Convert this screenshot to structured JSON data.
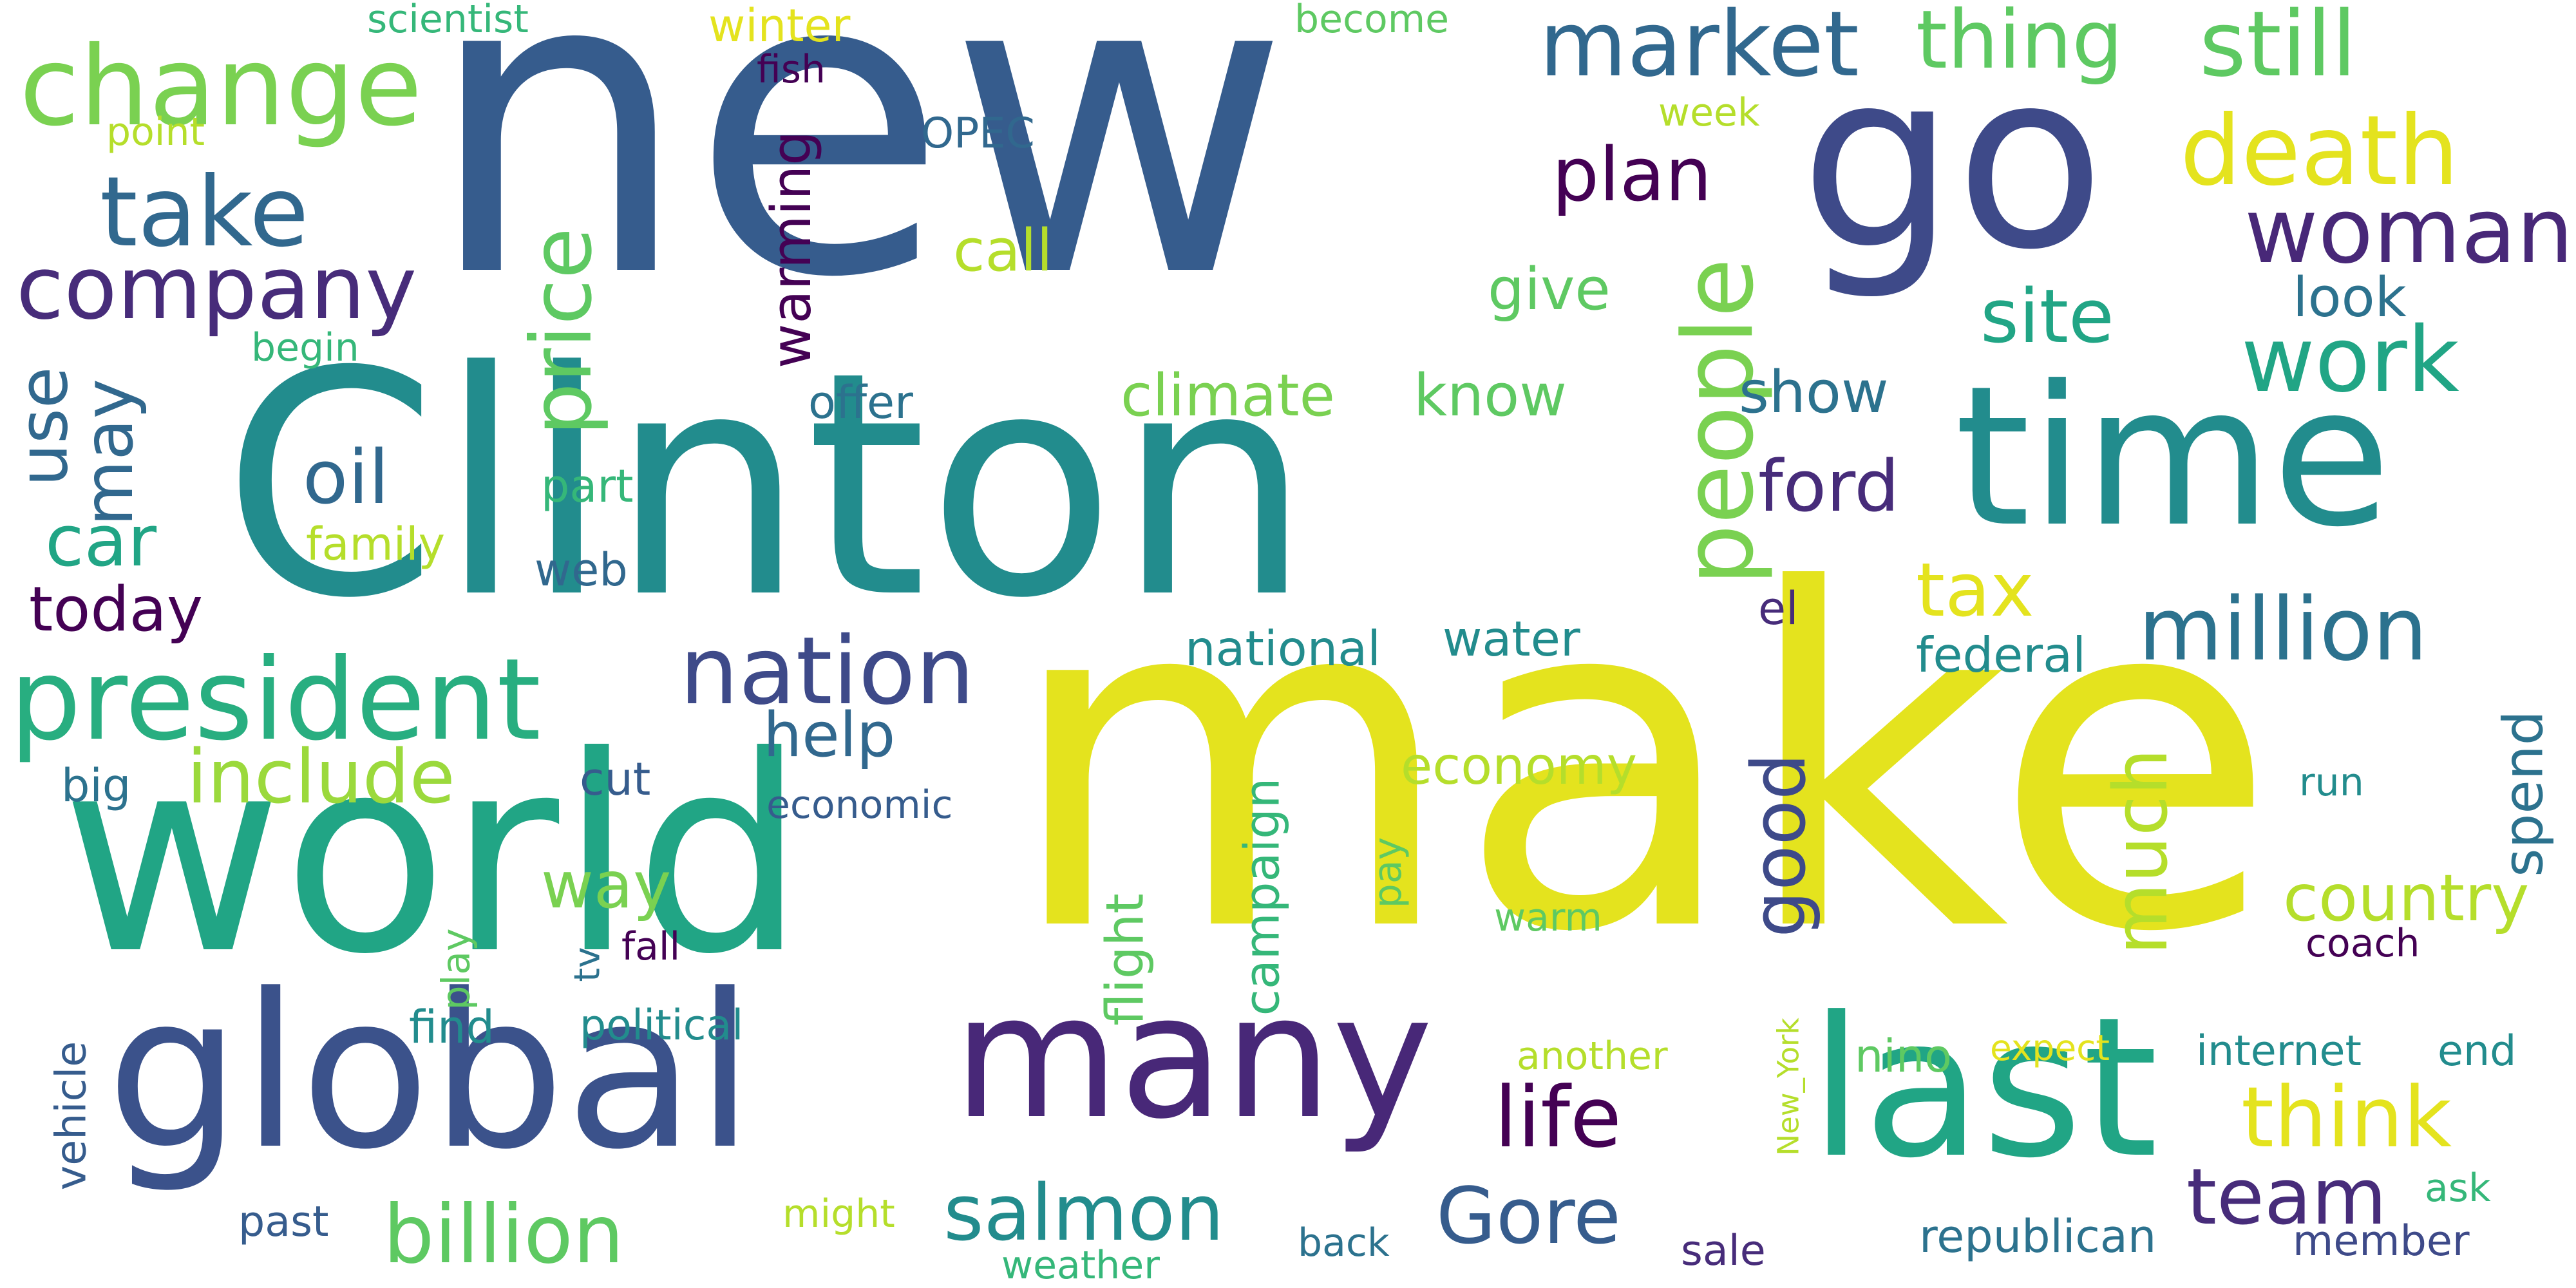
{
  "palette": {
    "yellow": "#e4e31e",
    "lime": "#9bd93c",
    "green": "#5ec962",
    "mint": "#35b779",
    "teal_green": "#21a585",
    "teal": "#228c8d",
    "blue_teal": "#2c728e",
    "blue": "#365c8d",
    "indigo": "#414487",
    "purple": "#482878",
    "dark_purple": "#440154"
  },
  "words": [
    {
      "text": "new",
      "color": "#365c8d"
    },
    {
      "text": "make",
      "color": "#e4e31e"
    },
    {
      "text": "Clinton",
      "color": "#228c8d"
    },
    {
      "text": "world",
      "color": "#21a585"
    },
    {
      "text": "go",
      "color": "#3e4a89"
    },
    {
      "text": "global",
      "color": "#3b528b"
    },
    {
      "text": "time",
      "color": "#228c8d"
    },
    {
      "text": "last",
      "color": "#21a585"
    },
    {
      "text": "many",
      "color": "#482878"
    },
    {
      "text": "change",
      "color": "#7ad151"
    },
    {
      "text": "president",
      "color": "#28ae80"
    },
    {
      "text": "take",
      "color": "#31688e"
    },
    {
      "text": "company",
      "color": "#472c7a"
    },
    {
      "text": "nation",
      "color": "#3e4a89"
    },
    {
      "text": "people",
      "color": "#7ad151"
    },
    {
      "text": "price",
      "color": "#5ec962"
    },
    {
      "text": "market",
      "color": "#31688e"
    },
    {
      "text": "thing",
      "color": "#5ec962"
    },
    {
      "text": "still",
      "color": "#5ec962"
    },
    {
      "text": "death",
      "color": "#e4e31e"
    },
    {
      "text": "woman",
      "color": "#482878"
    },
    {
      "text": "work",
      "color": "#21a585"
    },
    {
      "text": "million",
      "color": "#2c728e"
    },
    {
      "text": "billion",
      "color": "#5ec962"
    },
    {
      "text": "include",
      "color": "#9bd93c"
    },
    {
      "text": "salmon",
      "color": "#228c8d"
    },
    {
      "text": "Gore",
      "color": "#365c8d"
    },
    {
      "text": "team",
      "color": "#472c7a"
    },
    {
      "text": "think",
      "color": "#e4e31e"
    },
    {
      "text": "life",
      "color": "#440154"
    },
    {
      "text": "oil",
      "color": "#31688e"
    },
    {
      "text": "plan",
      "color": "#440154"
    },
    {
      "text": "site",
      "color": "#21a585"
    },
    {
      "text": "much",
      "color": "#b5de2b"
    },
    {
      "text": "good",
      "color": "#3e4a89"
    },
    {
      "text": "tax",
      "color": "#e4e31e"
    },
    {
      "text": "ford",
      "color": "#472c7a"
    },
    {
      "text": "car",
      "color": "#21a585"
    },
    {
      "text": "country",
      "color": "#b5de2b"
    },
    {
      "text": "may",
      "color": "#31688e"
    },
    {
      "text": "use",
      "color": "#31688e"
    },
    {
      "text": "today",
      "color": "#440154"
    },
    {
      "text": "warming",
      "color": "#440154"
    },
    {
      "text": "way",
      "color": "#7ad151"
    },
    {
      "text": "help",
      "color": "#31688e"
    },
    {
      "text": "climate",
      "color": "#7ad151"
    },
    {
      "text": "know",
      "color": "#5ec962"
    },
    {
      "text": "show",
      "color": "#2c728e"
    },
    {
      "text": "call",
      "color": "#b5de2b"
    },
    {
      "text": "give",
      "color": "#5ec962"
    },
    {
      "text": "look",
      "color": "#2c728e"
    },
    {
      "text": "spend",
      "color": "#2c728e"
    },
    {
      "text": "economy",
      "color": "#b5de2b"
    },
    {
      "text": "campaign",
      "color": "#35b779"
    },
    {
      "text": "flight",
      "color": "#5ec962"
    },
    {
      "text": "water",
      "color": "#228c8d"
    },
    {
      "text": "national",
      "color": "#228c8d"
    },
    {
      "text": "federal",
      "color": "#228c8d"
    },
    {
      "text": "family",
      "color": "#b5de2b"
    },
    {
      "text": "part",
      "color": "#35b779"
    },
    {
      "text": "web",
      "color": "#31688e"
    },
    {
      "text": "big",
      "color": "#2c728e"
    },
    {
      "text": "cut",
      "color": "#365c8d"
    },
    {
      "text": "offer",
      "color": "#2c728e"
    },
    {
      "text": "week",
      "color": "#b5de2b"
    },
    {
      "text": "OPEC",
      "color": "#31688e"
    },
    {
      "text": "fish",
      "color": "#440154"
    },
    {
      "text": "winter",
      "color": "#e4e31e"
    },
    {
      "text": "scientist",
      "color": "#35b779"
    },
    {
      "text": "become",
      "color": "#5ec962"
    },
    {
      "text": "point",
      "color": "#b5de2b"
    },
    {
      "text": "begin",
      "color": "#35b779"
    },
    {
      "text": "economic",
      "color": "#365c8d"
    },
    {
      "text": "el",
      "color": "#472c7a"
    },
    {
      "text": "run",
      "color": "#228c8d"
    },
    {
      "text": "pay",
      "color": "#5ec962"
    },
    {
      "text": "warm",
      "color": "#5ec962"
    },
    {
      "text": "coach",
      "color": "#440154"
    },
    {
      "text": "play",
      "color": "#5ec962"
    },
    {
      "text": "tv",
      "color": "#2c728e"
    },
    {
      "text": "fall",
      "color": "#440154"
    },
    {
      "text": "find",
      "color": "#228c8d"
    },
    {
      "text": "political",
      "color": "#228c8d"
    },
    {
      "text": "vehicle",
      "color": "#365c8d"
    },
    {
      "text": "another",
      "color": "#b5de2b"
    },
    {
      "text": "New_York",
      "color": "#b5de2b"
    },
    {
      "text": "nino",
      "color": "#5ec962"
    },
    {
      "text": "expect",
      "color": "#e4e31e"
    },
    {
      "text": "internet",
      "color": "#228c8d"
    },
    {
      "text": "end",
      "color": "#228c8d"
    },
    {
      "text": "ask",
      "color": "#35b779"
    },
    {
      "text": "member",
      "color": "#3e4a89"
    },
    {
      "text": "republican",
      "color": "#2c728e"
    },
    {
      "text": "sale",
      "color": "#472c7a"
    },
    {
      "text": "back",
      "color": "#2c728e"
    },
    {
      "text": "weather",
      "color": "#35b779"
    },
    {
      "text": "might",
      "color": "#b5de2b"
    },
    {
      "text": "past",
      "color": "#365c8d"
    }
  ]
}
